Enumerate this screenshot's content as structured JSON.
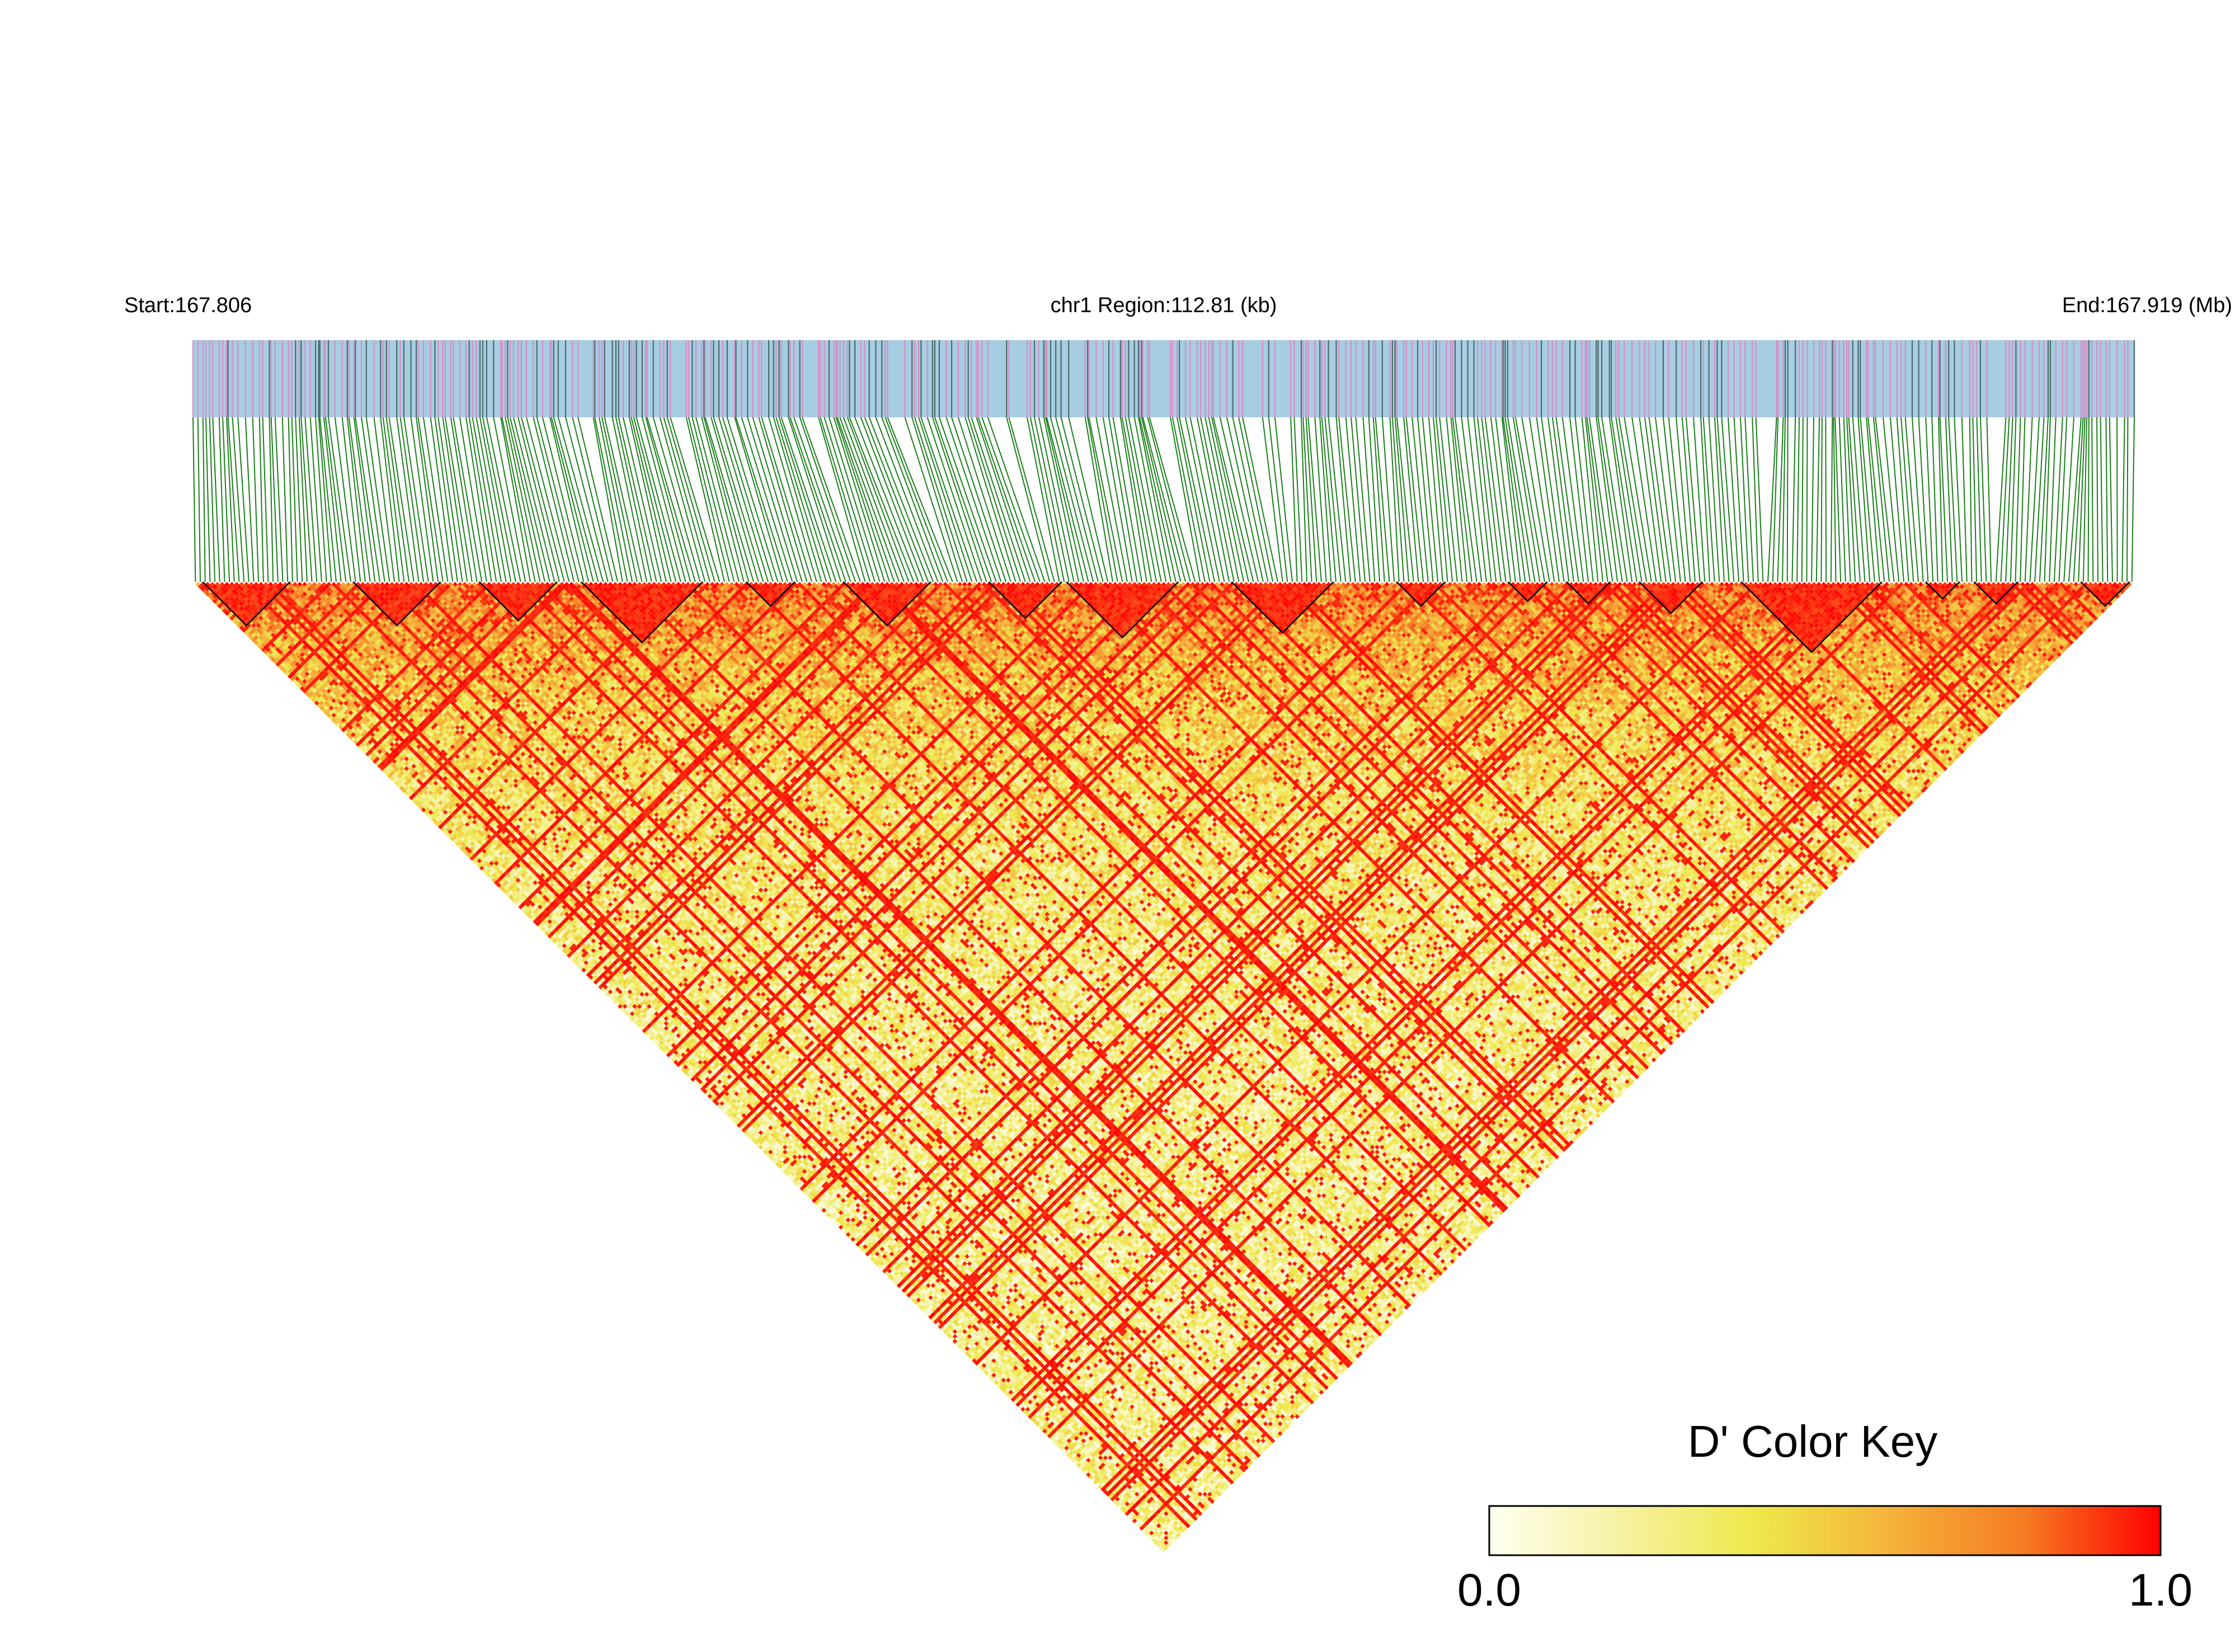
{
  "header": {
    "start_label": "Start:167.806",
    "region_label": "chr1 Region:112.81 (kb)",
    "end_label": "End:167.919 (Mb)"
  },
  "chart_data": {
    "type": "heatmap",
    "subtype": "ld-triangle",
    "chromosome": "chr1",
    "region_start_mb": 167.806,
    "region_end_mb": 167.919,
    "region_length_kb": 112.81,
    "n_snps": 400,
    "metric": "D'",
    "value_range": [
      0.0,
      1.0
    ],
    "haplotype_block_outlines": true,
    "colors": {
      "gene_track_bg": "#a6cde2",
      "snp_tick_alt": "#d98cc6",
      "snp_tick_dark": "#4d6b6b",
      "connector": "#1a7f1a",
      "block_outline": "#000000"
    },
    "color_key": {
      "title": "D' Color Key",
      "min_label": "0.0",
      "max_label": "1.0",
      "stops": [
        "#fffff0",
        "#f6f1a0",
        "#eee84a",
        "#f5b23a",
        "#f57a22",
        "#ff0000"
      ]
    }
  }
}
